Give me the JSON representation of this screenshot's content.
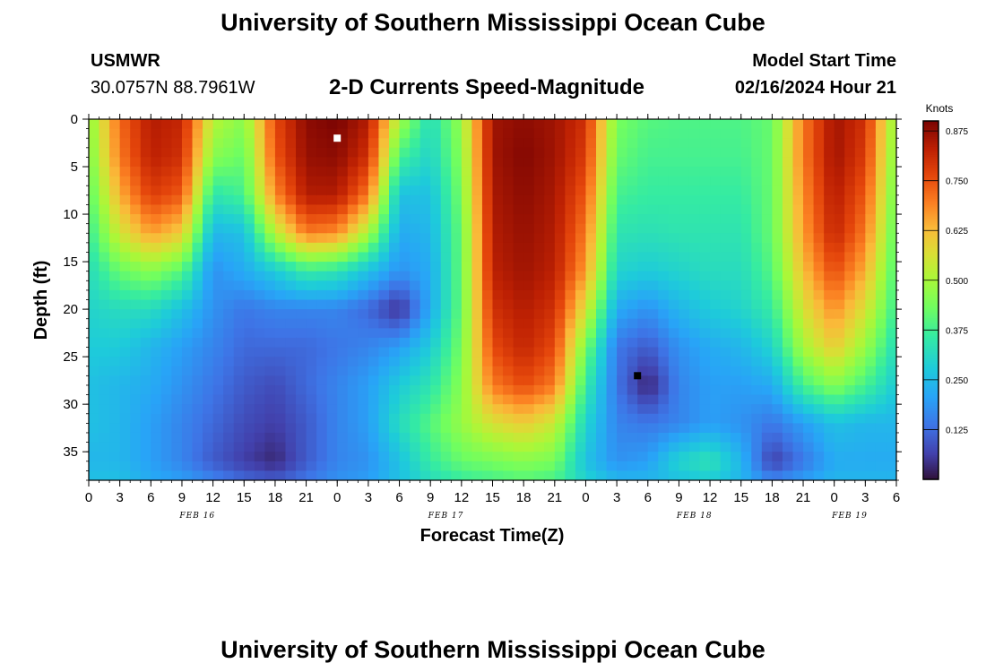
{
  "header": {
    "title": "University of Southern Mississippi Ocean Cube",
    "station": "USMWR",
    "coords": "30.0757N  88.7961W",
    "subtitle": "2-D Currents Speed-Magnitude",
    "model_start_label": "Model Start Time",
    "model_start_value": "02/16/2024 Hour 21"
  },
  "footer": {
    "title": "University of Southern Mississippi Ocean Cube"
  },
  "chart_data": {
    "type": "heatmap",
    "title": "2-D Currents Speed-Magnitude",
    "xlabel": "Forecast Time(Z)",
    "ylabel": "Depth (ft)",
    "x_range_hours": [
      0,
      78
    ],
    "y_range": [
      0,
      38
    ],
    "y_inverted": true,
    "x_tick_labels": [
      "0",
      "3",
      "6",
      "9",
      "12",
      "15",
      "18",
      "21",
      "0",
      "3",
      "6",
      "9",
      "12",
      "15",
      "18",
      "21",
      "0",
      "3",
      "6",
      "9",
      "12",
      "15",
      "18",
      "21",
      "0",
      "3",
      "6"
    ],
    "y_tick_labels": [
      "0",
      "5",
      "10",
      "15",
      "20",
      "25",
      "30",
      "35"
    ],
    "y_tick_values": [
      0,
      5,
      10,
      15,
      20,
      25,
      30,
      35
    ],
    "date_labels": [
      {
        "text": "FEB 16",
        "at_hour": 10.5
      },
      {
        "text": "FEB 17",
        "at_hour": 34.5
      },
      {
        "text": "FEB 18",
        "at_hour": 58.5
      },
      {
        "text": "FEB 19",
        "at_hour": 73.5
      }
    ],
    "colorbar": {
      "label": "Knots",
      "range": [
        0,
        0.9
      ],
      "ticks": [
        0.875,
        0.75,
        0.625,
        0.5,
        0.375,
        0.25,
        0.125
      ],
      "tick_labels": [
        "0.875",
        "0.750",
        "0.625",
        "0.500",
        "0.375",
        "0.250",
        "0.125"
      ],
      "colormap": "turbo"
    },
    "max_marker": {
      "hour": 24,
      "depth": 2,
      "color": "#ffffff"
    },
    "min_marker": {
      "hour": 53,
      "depth": 27,
      "color": "#000000"
    },
    "speed_grid": {
      "hours": [
        0,
        3,
        6,
        9,
        12,
        15,
        18,
        21,
        24,
        27,
        30,
        33,
        36,
        39,
        42,
        45,
        48,
        51,
        54,
        57,
        60,
        63,
        66,
        69,
        72,
        75,
        78
      ],
      "depths": [
        0,
        4,
        8,
        12,
        16,
        20,
        24,
        28,
        32,
        36,
        38
      ],
      "values": [
        [
          0.46,
          0.72,
          0.84,
          0.82,
          0.52,
          0.46,
          0.76,
          0.88,
          0.9,
          0.84,
          0.5,
          0.32,
          0.48,
          0.86,
          0.88,
          0.86,
          0.8,
          0.44,
          0.4,
          0.39,
          0.39,
          0.39,
          0.42,
          0.7,
          0.86,
          0.8,
          0.46
        ],
        [
          0.44,
          0.7,
          0.83,
          0.8,
          0.46,
          0.42,
          0.74,
          0.87,
          0.88,
          0.8,
          0.38,
          0.3,
          0.46,
          0.86,
          0.89,
          0.86,
          0.78,
          0.42,
          0.38,
          0.38,
          0.38,
          0.38,
          0.42,
          0.7,
          0.86,
          0.78,
          0.44
        ],
        [
          0.4,
          0.64,
          0.78,
          0.74,
          0.34,
          0.38,
          0.68,
          0.84,
          0.84,
          0.7,
          0.26,
          0.26,
          0.44,
          0.85,
          0.88,
          0.85,
          0.74,
          0.38,
          0.36,
          0.36,
          0.36,
          0.36,
          0.42,
          0.68,
          0.84,
          0.74,
          0.42
        ],
        [
          0.36,
          0.55,
          0.66,
          0.6,
          0.24,
          0.26,
          0.52,
          0.7,
          0.68,
          0.5,
          0.22,
          0.24,
          0.42,
          0.84,
          0.87,
          0.84,
          0.7,
          0.34,
          0.33,
          0.34,
          0.34,
          0.34,
          0.42,
          0.66,
          0.82,
          0.7,
          0.4
        ],
        [
          0.32,
          0.42,
          0.46,
          0.4,
          0.18,
          0.22,
          0.28,
          0.36,
          0.34,
          0.26,
          0.18,
          0.22,
          0.42,
          0.83,
          0.86,
          0.83,
          0.66,
          0.3,
          0.28,
          0.3,
          0.32,
          0.32,
          0.4,
          0.62,
          0.76,
          0.64,
          0.38
        ],
        [
          0.3,
          0.32,
          0.32,
          0.26,
          0.18,
          0.14,
          0.16,
          0.16,
          0.16,
          0.12,
          0.04,
          0.22,
          0.42,
          0.8,
          0.84,
          0.8,
          0.56,
          0.22,
          0.18,
          0.24,
          0.28,
          0.3,
          0.36,
          0.56,
          0.68,
          0.56,
          0.36
        ],
        [
          0.28,
          0.28,
          0.24,
          0.2,
          0.16,
          0.12,
          0.12,
          0.12,
          0.14,
          0.16,
          0.2,
          0.28,
          0.44,
          0.76,
          0.82,
          0.76,
          0.44,
          0.14,
          0.1,
          0.18,
          0.22,
          0.24,
          0.3,
          0.5,
          0.6,
          0.48,
          0.32
        ],
        [
          0.26,
          0.24,
          0.22,
          0.18,
          0.14,
          0.1,
          0.08,
          0.12,
          0.16,
          0.2,
          0.28,
          0.34,
          0.46,
          0.7,
          0.76,
          0.7,
          0.36,
          0.14,
          0.02,
          0.16,
          0.2,
          0.2,
          0.22,
          0.38,
          0.46,
          0.38,
          0.28
        ],
        [
          0.26,
          0.24,
          0.2,
          0.16,
          0.12,
          0.08,
          0.06,
          0.1,
          0.16,
          0.2,
          0.32,
          0.4,
          0.48,
          0.56,
          0.6,
          0.54,
          0.3,
          0.16,
          0.14,
          0.16,
          0.2,
          0.18,
          0.14,
          0.2,
          0.26,
          0.24,
          0.24
        ],
        [
          0.24,
          0.24,
          0.2,
          0.16,
          0.1,
          0.06,
          0.03,
          0.1,
          0.16,
          0.18,
          0.26,
          0.36,
          0.42,
          0.44,
          0.46,
          0.44,
          0.26,
          0.18,
          0.2,
          0.3,
          0.34,
          0.24,
          0.06,
          0.14,
          0.22,
          0.22,
          0.22
        ],
        [
          0.26,
          0.26,
          0.22,
          0.2,
          0.16,
          0.12,
          0.1,
          0.14,
          0.18,
          0.2,
          0.26,
          0.32,
          0.36,
          0.38,
          0.4,
          0.38,
          0.3,
          0.24,
          0.24,
          0.26,
          0.28,
          0.24,
          0.16,
          0.2,
          0.24,
          0.24,
          0.24
        ]
      ]
    }
  }
}
